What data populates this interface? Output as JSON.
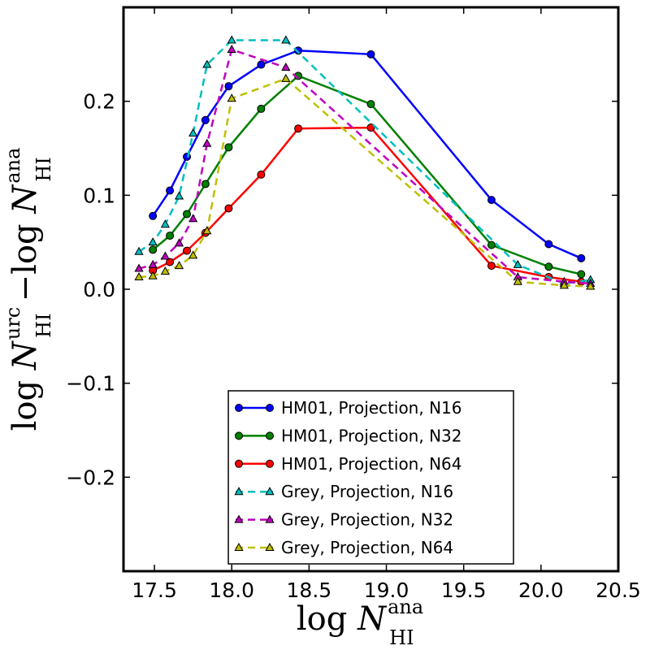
{
  "chart_data": {
    "type": "line",
    "xlabel": {
      "main": "log ",
      "var": "N",
      "sup": "ana",
      "sub": "HI"
    },
    "ylabel": {
      "part1": {
        "main": "log ",
        "var": "N",
        "sup": "urc",
        "sub": "HI"
      },
      "minus": "−log ",
      "part2": {
        "var": "N",
        "sup": "ana",
        "sub": "HI"
      }
    },
    "xlim": [
      17.3,
      20.5
    ],
    "ylim": [
      -0.3,
      0.3
    ],
    "xticks": [
      17.5,
      18.0,
      18.5,
      19.0,
      19.5,
      20.0,
      20.5
    ],
    "xtick_labels": [
      "17.5",
      "18.0",
      "18.5",
      "19.0",
      "19.5",
      "20.0",
      "20.5"
    ],
    "yticks": [
      -0.2,
      -0.1,
      0.0,
      0.1,
      0.2
    ],
    "ytick_labels": [
      "−0.2",
      "−0.1",
      "0.0",
      "0.1",
      "0.2"
    ],
    "grid": false,
    "legend_position": "lower-center",
    "series": [
      {
        "name": "HM01, Projection, N16",
        "color": "#0000ff",
        "style": "solid",
        "marker": "circle",
        "x": [
          17.49,
          17.6,
          17.71,
          17.83,
          17.98,
          18.19,
          18.43,
          18.9,
          19.68,
          20.05,
          20.26
        ],
        "y": [
          0.078,
          0.105,
          0.141,
          0.18,
          0.216,
          0.239,
          0.254,
          0.25,
          0.095,
          0.048,
          0.033
        ]
      },
      {
        "name": "HM01, Projection, N32",
        "color": "#008000",
        "style": "solid",
        "marker": "circle",
        "x": [
          17.49,
          17.6,
          17.71,
          17.83,
          17.98,
          18.19,
          18.43,
          18.9,
          19.68,
          20.05,
          20.26
        ],
        "y": [
          0.042,
          0.057,
          0.08,
          0.112,
          0.151,
          0.192,
          0.227,
          0.197,
          0.047,
          0.024,
          0.016
        ]
      },
      {
        "name": "HM01, Projection, N64",
        "color": "#ff0000",
        "style": "solid",
        "marker": "circle",
        "x": [
          17.49,
          17.6,
          17.71,
          17.83,
          17.98,
          18.19,
          18.43,
          18.9,
          19.68,
          20.05,
          20.26
        ],
        "y": [
          0.02,
          0.029,
          0.041,
          0.06,
          0.086,
          0.122,
          0.171,
          0.172,
          0.025,
          0.013,
          0.008
        ]
      },
      {
        "name": "Grey, Projection, N16",
        "color": "#00bfbf",
        "style": "dashed",
        "marker": "triangle",
        "x": [
          17.4,
          17.49,
          17.57,
          17.66,
          17.75,
          17.84,
          18.0,
          18.35,
          19.85,
          20.15,
          20.32
        ],
        "y": [
          0.04,
          0.05,
          0.069,
          0.099,
          0.166,
          0.239,
          0.265,
          0.265,
          0.026,
          0.006,
          0.01
        ]
      },
      {
        "name": "Grey, Projection, N32",
        "color": "#bf00bf",
        "style": "dashed",
        "marker": "triangle",
        "x": [
          17.4,
          17.49,
          17.57,
          17.66,
          17.75,
          17.84,
          18.0,
          18.35,
          19.85,
          20.15,
          20.32
        ],
        "y": [
          0.022,
          0.026,
          0.035,
          0.049,
          0.075,
          0.155,
          0.255,
          0.236,
          0.013,
          0.008,
          0.006
        ]
      },
      {
        "name": "Grey, Projection, N64",
        "color": "#bfbf00",
        "style": "dashed",
        "marker": "triangle",
        "x": [
          17.4,
          17.49,
          17.57,
          17.66,
          17.75,
          17.84,
          18.0,
          18.35,
          19.85,
          20.15,
          20.32
        ],
        "y": [
          0.013,
          0.014,
          0.019,
          0.025,
          0.036,
          0.062,
          0.203,
          0.224,
          0.008,
          0.004,
          0.003
        ]
      }
    ]
  }
}
